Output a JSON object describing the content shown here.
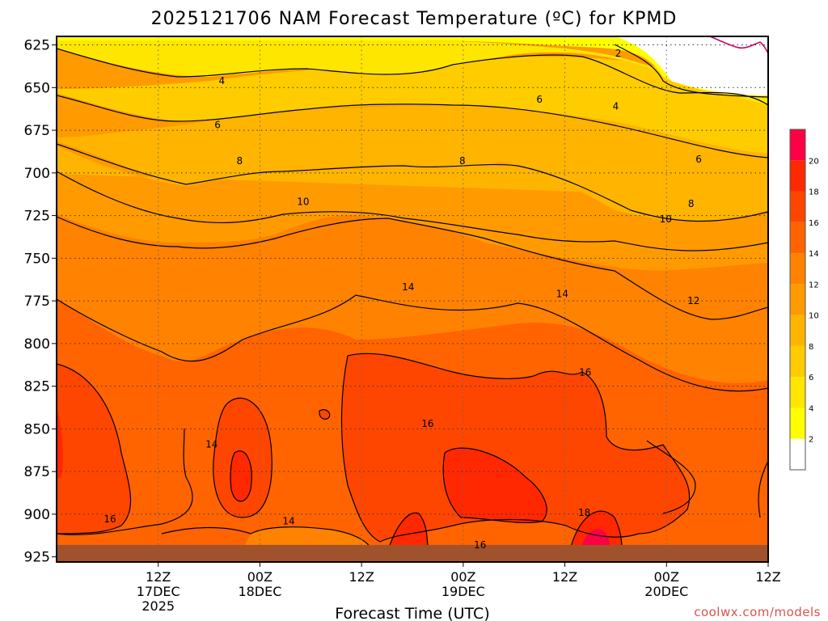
{
  "chart_data": {
    "type": "heatmap",
    "title": "2025121706 NAM Forecast Temperature (ºC) for KPMD",
    "xlabel": "Forecast Time (UTC)",
    "ylabel": "",
    "y_axis": {
      "ticks": [
        "625",
        "650",
        "675",
        "700",
        "725",
        "750",
        "775",
        "800",
        "825",
        "850",
        "875",
        "900",
        "925"
      ],
      "values": [
        625,
        650,
        675,
        700,
        725,
        750,
        775,
        800,
        825,
        850,
        875,
        900,
        925
      ],
      "range": [
        620,
        928
      ],
      "inverted": true
    },
    "x_axis": {
      "range_hours": [
        -6,
        78
      ],
      "ticks": [
        {
          "hour": 6,
          "lines": [
            "12Z",
            "17DEC",
            "2025"
          ]
        },
        {
          "hour": 18,
          "lines": [
            "00Z",
            "18DEC"
          ]
        },
        {
          "hour": 30,
          "lines": [
            "12Z"
          ]
        },
        {
          "hour": 42,
          "lines": [
            "00Z",
            "19DEC"
          ]
        },
        {
          "hour": 54,
          "lines": [
            "12Z"
          ]
        },
        {
          "hour": 66,
          "lines": [
            "00Z",
            "20DEC"
          ]
        },
        {
          "hour": 78,
          "lines": [
            "12Z"
          ]
        }
      ]
    },
    "grid": true,
    "colorbar": {
      "labels": [
        "2",
        "4",
        "6",
        "8",
        "10",
        "12",
        "14",
        "16",
        "18",
        "20"
      ],
      "bands": [
        {
          "from": 0,
          "to": 2,
          "color": "#ffffff"
        },
        {
          "from": 2,
          "to": 4,
          "color": "#ffff00"
        },
        {
          "from": 4,
          "to": 6,
          "color": "#ffe600"
        },
        {
          "from": 6,
          "to": 8,
          "color": "#ffcc00"
        },
        {
          "from": 8,
          "to": 10,
          "color": "#ffb400"
        },
        {
          "from": 10,
          "to": 12,
          "color": "#ff9b00"
        },
        {
          "from": 12,
          "to": 14,
          "color": "#ff8200"
        },
        {
          "from": 14,
          "to": 16,
          "color": "#ff6400"
        },
        {
          "from": 16,
          "to": 18,
          "color": "#ff4600"
        },
        {
          "from": 18,
          "to": 20,
          "color": "#ff2800"
        },
        {
          "from": 20,
          "to": 22,
          "color": "#ff0044"
        }
      ]
    },
    "contour_labels": [
      {
        "text": "2",
        "hour": 60.3,
        "p": 630
      },
      {
        "text": "4",
        "hour": 13.5,
        "p": 646
      },
      {
        "text": "4",
        "hour": 60.0,
        "p": 661
      },
      {
        "text": "6",
        "hour": 13.0,
        "p": 672
      },
      {
        "text": "6",
        "hour": 51.0,
        "p": 657
      },
      {
        "text": "6",
        "hour": 69.8,
        "p": 692
      },
      {
        "text": "8",
        "hour": 15.6,
        "p": 693
      },
      {
        "text": "8",
        "hour": 41.9,
        "p": 693
      },
      {
        "text": "8",
        "hour": 68.9,
        "p": 718
      },
      {
        "text": "10",
        "hour": 23.1,
        "p": 717
      },
      {
        "text": "10",
        "hour": 65.9,
        "p": 727
      },
      {
        "text": "12",
        "hour": 69.2,
        "p": 775
      },
      {
        "text": "14",
        "hour": 35.5,
        "p": 767
      },
      {
        "text": "14",
        "hour": 53.7,
        "p": 771
      },
      {
        "text": "14",
        "hour": 12.3,
        "p": 859
      },
      {
        "text": "14",
        "hour": 21.4,
        "p": 904
      },
      {
        "text": "16",
        "hour": 56.4,
        "p": 817
      },
      {
        "text": "16",
        "hour": 37.8,
        "p": 847
      },
      {
        "text": "16",
        "hour": 0.3,
        "p": 903
      },
      {
        "text": "16",
        "hour": 44.0,
        "p": 918
      },
      {
        "text": "18",
        "hour": 56.3,
        "p": 899
      }
    ],
    "terrain_top_p": 918,
    "terrain_color": "#a0522d"
  },
  "credit": "coolwx.com/models"
}
